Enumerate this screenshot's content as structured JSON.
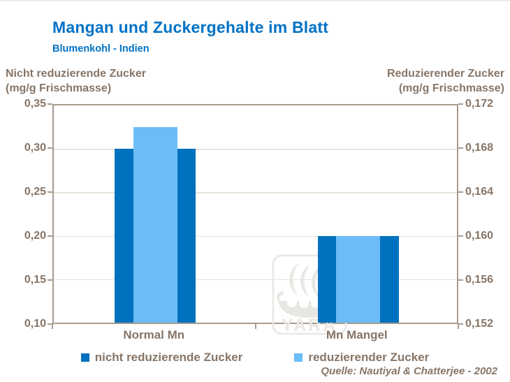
{
  "title": "Mangan und Zuckergehalte im Blatt",
  "subtitle": "Blumenkohl - Indien",
  "source": "Quelle: Nautiyal & Chatterjee - 2002",
  "colors": {
    "title_blue": "#0072C6",
    "dark_blue": "#0071BE",
    "light_blue": "#6CBCF8",
    "text_brown": "#877567",
    "axis_line": "#A89B8D",
    "gridline": "#EAE2DA",
    "watermark_gray": "#E9E7E3"
  },
  "left_axis": {
    "title_line1": "Nicht reduzierende Zucker",
    "title_line2": "(mg/g Frischmasse)",
    "tick_labels": [
      "0,35",
      "0,30",
      "0,25",
      "0,20",
      "0,15",
      "0,10"
    ]
  },
  "right_axis": {
    "title_line1": "Reduzierender Zucker",
    "title_line2": "(mg/g Frischmasse)",
    "tick_labels": [
      "0,172",
      "0,168",
      "0,164",
      "0,160",
      "0,156",
      "0,152"
    ]
  },
  "chart_data": {
    "type": "bar",
    "categories": [
      "Normal Mn",
      "Mn Mangel"
    ],
    "series": [
      {
        "name": "nicht reduzierende Zucker",
        "axis": "left",
        "values": [
          0.3,
          0.2
        ],
        "color_key": "dark_blue"
      },
      {
        "name": "reduzierender Zucker",
        "axis": "right",
        "values": [
          0.17,
          0.16
        ],
        "color_key": "light_blue"
      }
    ],
    "left_ylim": [
      0.1,
      0.35
    ],
    "right_ylim": [
      0.152,
      0.172
    ],
    "grid": true,
    "legend_position": "bottom"
  },
  "legend": {
    "items": [
      {
        "label": "nicht reduzierende Zucker",
        "color_key": "dark_blue"
      },
      {
        "label": "reduzierender Zucker",
        "color_key": "light_blue"
      }
    ]
  },
  "watermark": {
    "text": "YARA"
  }
}
